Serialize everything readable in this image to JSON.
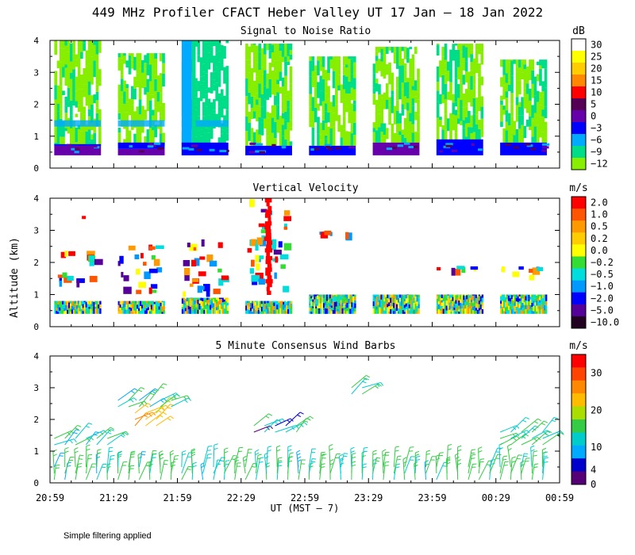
{
  "figure": {
    "title": "449 MHz Profiler CFACT Heber Valley UT 17 Jan — 18 Jan 2022",
    "xlabel": "UT  (MST – 7)",
    "ylabel": "Altitude (km)",
    "footnote": "Simple filtering applied",
    "x_ticks": [
      "20:59",
      "21:29",
      "21:59",
      "22:29",
      "22:59",
      "23:29",
      "23:59",
      "00:29",
      "00:59"
    ]
  },
  "chart_data": [
    {
      "type": "heatmap",
      "title": "Signal to Noise Ratio",
      "unit": "dB",
      "ylim": [
        0,
        4
      ],
      "y_ticks": [
        "0",
        "1",
        "2",
        "3",
        "4"
      ],
      "xlim": [
        "20:59",
        "00:59"
      ],
      "colorbar_labels": [
        "30",
        "25",
        "20",
        "15",
        "10",
        "5",
        "0",
        "−3",
        "−6",
        "−9",
        "−12"
      ],
      "colorbar_colors": [
        "#ffffff",
        "#ffff00",
        "#ffcc00",
        "#ff8800",
        "#ff0000",
        "#550055",
        "#6600aa",
        "#0000ff",
        "#00aaff",
        "#00dd88",
        "#88ee00"
      ],
      "segments": [
        {
          "start": "21:01",
          "end": "21:23",
          "low_top_km": 0.7,
          "layers": [
            {
              "from_km": 0.4,
              "to_km": 0.7,
              "db": 0
            },
            {
              "from_km": 0.7,
              "to_km": 0.75,
              "db": -3
            }
          ],
          "aloft_db": -12,
          "aloft_top_km": 4.0
        },
        {
          "start": "21:31",
          "end": "21:53",
          "low_top_km": 0.7,
          "layers": [
            {
              "from_km": 0.4,
              "to_km": 0.6,
              "db": 0
            },
            {
              "from_km": 0.6,
              "to_km": 0.8,
              "db": -3
            }
          ],
          "aloft_db": -12,
          "aloft_top_km": 3.6
        },
        {
          "start": "22:01",
          "end": "22:23",
          "low_top_km": 0.7,
          "layers": [
            {
              "from_km": 0.4,
              "to_km": 0.8,
              "db": -3
            }
          ],
          "aloft_db": -9,
          "aloft_top_km": 4.0
        },
        {
          "start": "22:31",
          "end": "22:53",
          "low_top_km": 0.7,
          "layers": [
            {
              "from_km": 0.4,
              "to_km": 0.7,
              "db": -3
            }
          ],
          "aloft_db": -12,
          "aloft_top_km": 3.9
        },
        {
          "start": "23:01",
          "end": "23:23",
          "low_top_km": 0.7,
          "layers": [
            {
              "from_km": 0.4,
              "to_km": 0.7,
              "db": -3
            }
          ],
          "aloft_db": -12,
          "aloft_top_km": 3.5
        },
        {
          "start": "23:31",
          "end": "23:53",
          "low_top_km": 0.8,
          "layers": [
            {
              "from_km": 0.4,
              "to_km": 0.8,
              "db": 0
            }
          ],
          "aloft_db": -12,
          "aloft_top_km": 3.8
        },
        {
          "start": "00:01",
          "end": "00:23",
          "low_top_km": 0.8,
          "layers": [
            {
              "from_km": 0.4,
              "to_km": 0.9,
              "db": -3
            }
          ],
          "aloft_db": -12,
          "aloft_top_km": 3.9
        },
        {
          "start": "00:31",
          "end": "00:53",
          "low_top_km": 0.8,
          "layers": [
            {
              "from_km": 0.4,
              "to_km": 0.8,
              "db": -3
            }
          ],
          "aloft_db": -12,
          "aloft_top_km": 3.4
        }
      ]
    },
    {
      "type": "heatmap",
      "title": "Vertical Velocity",
      "unit": "m/s",
      "ylim": [
        0,
        4
      ],
      "y_ticks": [
        "0",
        "1",
        "2",
        "3",
        "4"
      ],
      "xlim": [
        "20:59",
        "00:59"
      ],
      "colorbar_labels": [
        "2.0",
        "1.0",
        "0.5",
        "0.2",
        "0.0",
        "−0.2",
        "−0.5",
        "−1.0",
        "−2.0",
        "−5.0",
        "−10.0"
      ],
      "colorbar_colors": [
        "#ff0000",
        "#ff5500",
        "#ff9900",
        "#ffcc00",
        "#ffff00",
        "#33dd33",
        "#00dddd",
        "#0099ff",
        "#0000ff",
        "#550099",
        "#220022"
      ],
      "segments": [
        {
          "start": "21:01",
          "end": "21:23",
          "w_top_km": 0.8,
          "aloft": [
            {
              "from_km": 1.3,
              "to_km": 1.6
            },
            {
              "from_km": 2.0,
              "to_km": 2.3
            }
          ]
        },
        {
          "start": "21:31",
          "end": "21:53",
          "w_top_km": 0.8,
          "aloft": [
            {
              "from_km": 1.0,
              "to_km": 2.5
            }
          ]
        },
        {
          "start": "22:01",
          "end": "22:23",
          "w_top_km": 0.9,
          "aloft": [
            {
              "from_km": 1.0,
              "to_km": 2.8
            }
          ]
        },
        {
          "start": "22:31",
          "end": "22:53",
          "w_top_km": 0.8,
          "aloft": [
            {
              "from_km": 1.0,
              "to_km": 3.9
            }
          ]
        },
        {
          "start": "23:01",
          "end": "23:23",
          "w_top_km": 1.0,
          "aloft": [
            {
              "from_km": 2.8,
              "to_km": 2.9
            }
          ]
        },
        {
          "start": "23:31",
          "end": "23:53",
          "w_top_km": 1.0,
          "aloft": []
        },
        {
          "start": "00:01",
          "end": "00:23",
          "w_top_km": 1.0,
          "aloft": [
            {
              "from_km": 1.7,
              "to_km": 1.8
            }
          ]
        },
        {
          "start": "00:31",
          "end": "00:53",
          "w_top_km": 1.0,
          "aloft": [
            {
              "from_km": 1.5,
              "to_km": 1.8
            }
          ]
        }
      ]
    },
    {
      "type": "scatter",
      "title": "5 Minute Consensus Wind Barbs",
      "unit": "m/s",
      "ylim": [
        0,
        4
      ],
      "y_ticks": [
        "0",
        "1",
        "2",
        "3",
        "4"
      ],
      "xlim": [
        "20:59",
        "00:59"
      ],
      "colorbar_labels": [
        "30",
        "20",
        "10",
        "4",
        "0"
      ],
      "colorbar_values": [
        35,
        30,
        25,
        20,
        15,
        10,
        5,
        4,
        2,
        0
      ],
      "colorbar_colors": [
        "#ff0000",
        "#ff4400",
        "#ff8800",
        "#ffbb00",
        "#aadd00",
        "#33cc44",
        "#00cccc",
        "#00aaff",
        "#0000cc",
        "#550077"
      ],
      "layers": [
        {
          "from": "21:01",
          "to": "00:55",
          "alt_km": [
            0.1,
            0.3,
            0.5
          ],
          "speed_ms": 8
        },
        {
          "from": "21:01",
          "to": "21:27",
          "alt_km": [
            1.2,
            1.4
          ],
          "speed_ms": 6
        },
        {
          "from": "21:39",
          "to": "21:53",
          "alt_km": [
            1.8,
            2.0,
            2.2
          ],
          "speed_ms": 20
        },
        {
          "from": "21:31",
          "to": "21:57",
          "alt_km": [
            2.4,
            2.6
          ],
          "speed_ms": 7
        },
        {
          "from": "22:35",
          "to": "22:55",
          "alt_km": [
            1.6,
            1.8
          ],
          "speed_ms": 4
        },
        {
          "from": "23:21",
          "to": "23:27",
          "alt_km": [
            2.8,
            3.0
          ],
          "speed_ms": 9
        },
        {
          "from": "00:31",
          "to": "00:55",
          "alt_km": [
            1.2,
            1.4,
            1.6
          ],
          "speed_ms": 8
        }
      ]
    }
  ]
}
